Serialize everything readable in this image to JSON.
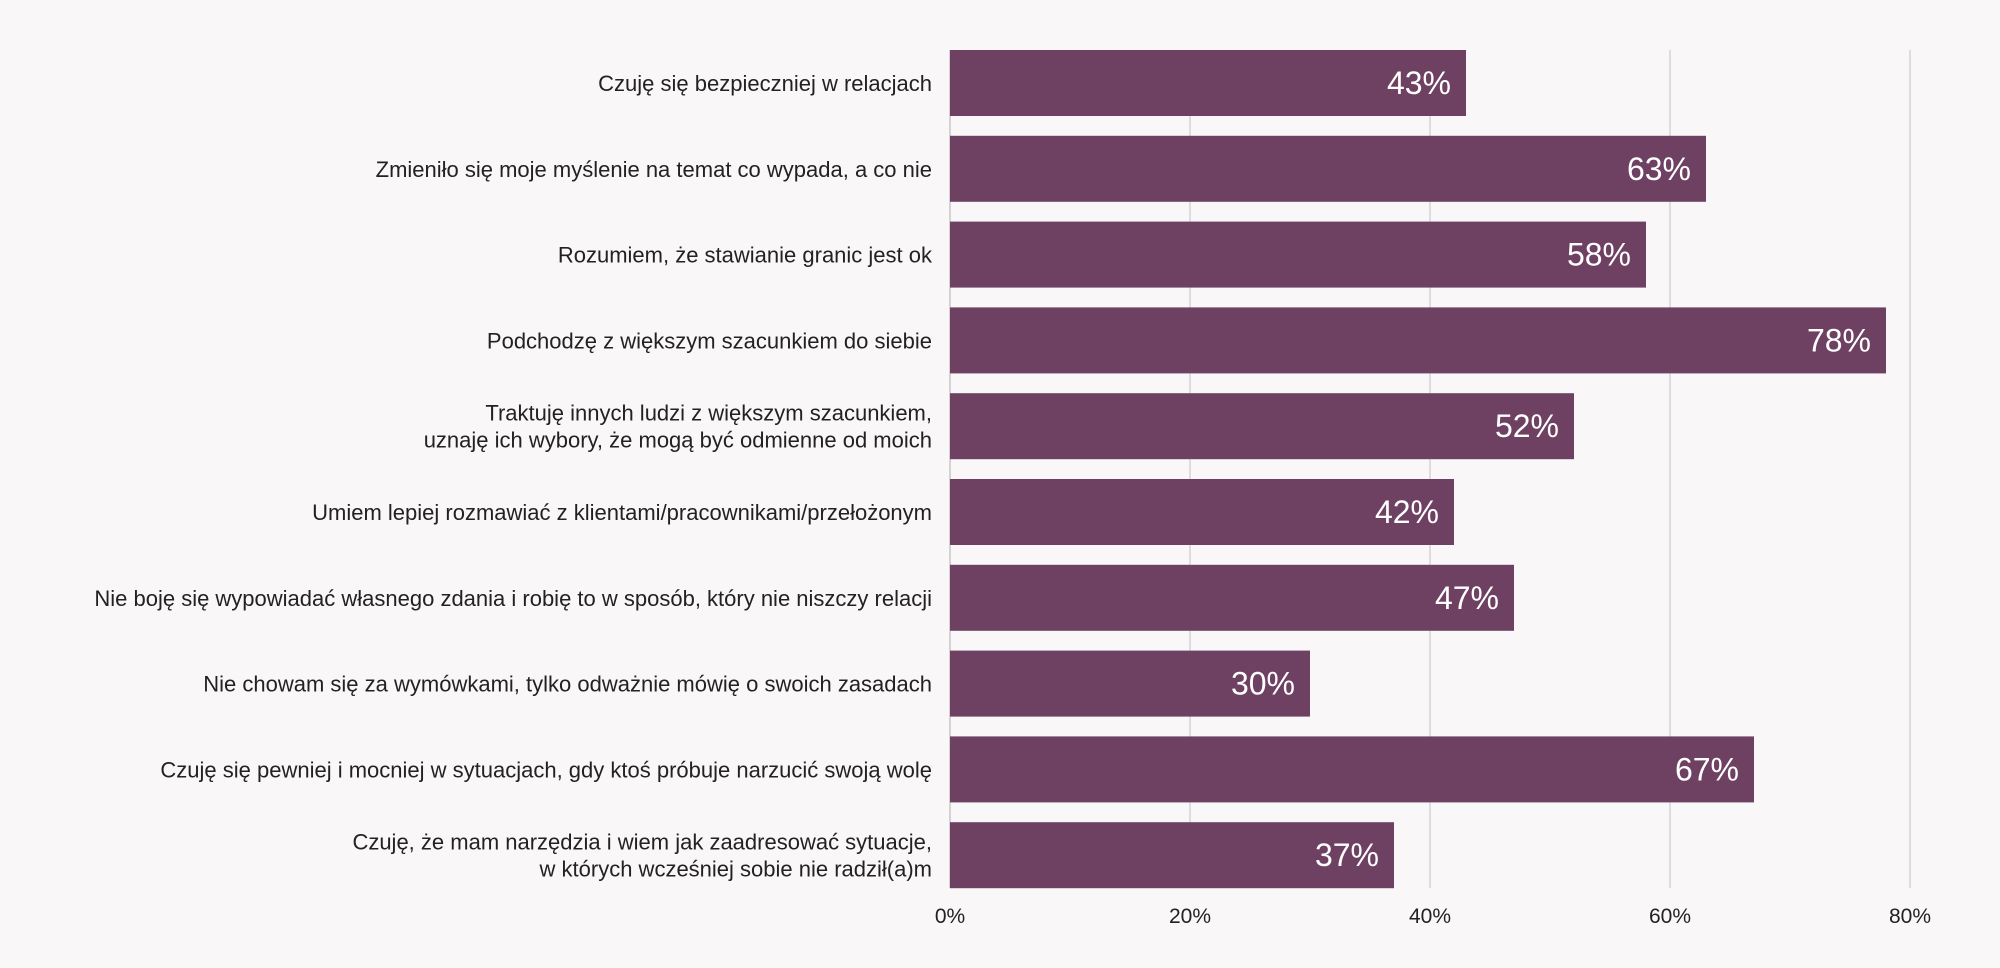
{
  "chart_data": {
    "type": "bar",
    "orientation": "horizontal",
    "categories": [
      [
        "Czuję się bezpieczniej w relacjach"
      ],
      [
        "Zmieniło się moje myślenie na temat co wypada, a co nie"
      ],
      [
        "Rozumiem, że stawianie granic jest ok"
      ],
      [
        "Podchodzę z większym szacunkiem do siebie"
      ],
      [
        "Traktuję innych ludzi z większym szacunkiem,",
        "uznaję ich wybory, że mogą być odmienne od moich"
      ],
      [
        "Umiem lepiej rozmawiać z klientami/pracownikami/przełożonym"
      ],
      [
        "Nie boję się wypowiadać własnego zdania i robię to w sposób, który nie niszczy relacji"
      ],
      [
        "Nie chowam się za wymówkami, tylko odważnie mówię o swoich zasadach"
      ],
      [
        "Czuję się pewniej i mocniej w sytuacjach, gdy ktoś próbuje narzucić swoją wolę"
      ],
      [
        "Czuję, że mam narzędzia i wiem jak zaadresować sytuacje,",
        "w których wcześniej sobie nie radził(a)m"
      ]
    ],
    "values": [
      43,
      63,
      58,
      78,
      52,
      42,
      47,
      30,
      67,
      37
    ],
    "value_labels": [
      "43%",
      "63%",
      "58%",
      "78%",
      "52%",
      "42%",
      "47%",
      "30%",
      "67%",
      "37%"
    ],
    "xlim": [
      0,
      80
    ],
    "x_ticks": [
      0,
      20,
      40,
      60,
      80
    ],
    "x_tick_labels": [
      "0%",
      "20%",
      "40%",
      "60%",
      "80%"
    ],
    "grid": "vertical",
    "legend": "none",
    "colors": {
      "bar": "#6e4163",
      "background": "#f9f7f8"
    }
  }
}
